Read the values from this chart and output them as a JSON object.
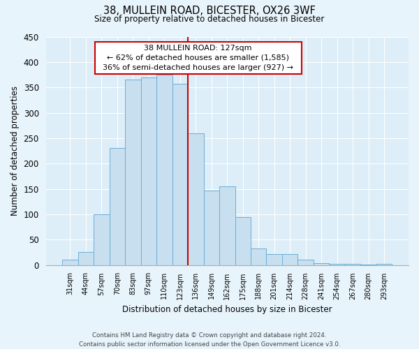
{
  "title": "38, MULLEIN ROAD, BICESTER, OX26 3WF",
  "subtitle": "Size of property relative to detached houses in Bicester",
  "xlabel": "Distribution of detached houses by size in Bicester",
  "ylabel": "Number of detached properties",
  "bar_labels": [
    "31sqm",
    "44sqm",
    "57sqm",
    "70sqm",
    "83sqm",
    "97sqm",
    "110sqm",
    "123sqm",
    "136sqm",
    "149sqm",
    "162sqm",
    "175sqm",
    "188sqm",
    "201sqm",
    "214sqm",
    "228sqm",
    "241sqm",
    "254sqm",
    "267sqm",
    "280sqm",
    "293sqm"
  ],
  "bar_values": [
    10,
    25,
    100,
    230,
    365,
    370,
    375,
    357,
    260,
    147,
    155,
    95,
    33,
    22,
    22,
    11,
    4,
    2,
    2,
    1,
    2
  ],
  "bar_color": "#c8dff0",
  "bar_edge_color": "#6baed6",
  "highlight_line_color": "#cc0000",
  "highlight_line_index": 7,
  "ylim": [
    0,
    450
  ],
  "yticks": [
    0,
    50,
    100,
    150,
    200,
    250,
    300,
    350,
    400,
    450
  ],
  "annotation_title": "38 MULLEIN ROAD: 127sqm",
  "annotation_line1": "← 62% of detached houses are smaller (1,585)",
  "annotation_line2": "36% of semi-detached houses are larger (927) →",
  "annotation_box_color": "#ffffff",
  "annotation_box_edge": "#cc0000",
  "footer_line1": "Contains HM Land Registry data © Crown copyright and database right 2024.",
  "footer_line2": "Contains public sector information licensed under the Open Government Licence v3.0.",
  "bg_color": "#e8f4fb",
  "plot_bg_color": "#ddeef8",
  "grid_color": "#ffffff"
}
